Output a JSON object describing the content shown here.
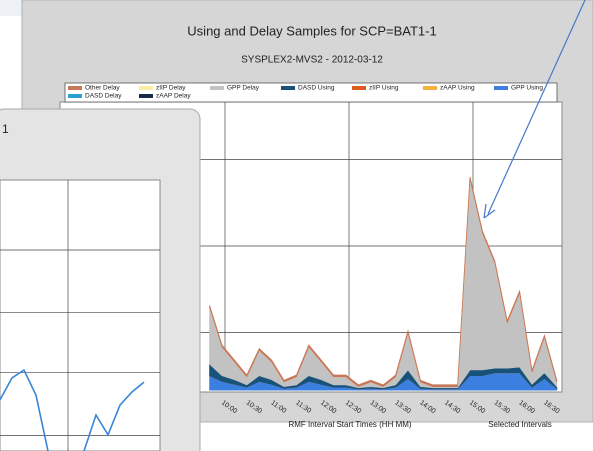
{
  "chart_data": [
    {
      "type": "area",
      "title": "Using and Delay Samples for SCP=BAT1-1",
      "subtitle": "SYSPLEX2-MVS2 - 2012-03-12",
      "x_label": "RMF Interval Start Times (HH MM)",
      "note": "Selected Intervals",
      "stacked": true,
      "grid": true,
      "categories": [
        null,
        "10:00",
        null,
        "10:30",
        null,
        "11:00",
        null,
        "11:30",
        null,
        "12:00",
        null,
        "12:30",
        null,
        "13:00",
        null,
        "13:30",
        null,
        "14:00",
        null,
        "14:30",
        null,
        "15:00",
        null,
        "15:30",
        null,
        "16:00",
        null,
        "16:30",
        null
      ],
      "ylim": [
        0,
        50
      ],
      "yticks": [
        10,
        25,
        40
      ],
      "series": [
        {
          "name": "Other Delay",
          "color": "#c8785a",
          "values": [
            0.3,
            0.3,
            0.3,
            0.3,
            0.3,
            0.3,
            0.3,
            0.3,
            0.3,
            0.3,
            0.3,
            0.3,
            0.3,
            0.3,
            0.3,
            0.3,
            0.3,
            0.3,
            0.3,
            0.3,
            0.3,
            0.3,
            0.3,
            0.3,
            0.3,
            0.3,
            0.3,
            0.3,
            0.3
          ]
        },
        {
          "name": "zIIP Delay",
          "color": "#fbeea0",
          "values": [
            0,
            0,
            0,
            0,
            0,
            0,
            0,
            0,
            0,
            0,
            0,
            0,
            0,
            0,
            0,
            0,
            0,
            0,
            0,
            0,
            0,
            0,
            0,
            0,
            0,
            0,
            0,
            0,
            0
          ]
        },
        {
          "name": "GPP Delay",
          "color": "#c2c2c2",
          "values": [
            9.9,
            5.0,
            3.1,
            1.4,
            4.4,
            3.1,
            0.8,
            1.4,
            5.0,
            3.1,
            1.4,
            1.4,
            0.2,
            0.8,
            0.2,
            1.4,
            6.5,
            0.8,
            0.2,
            0.2,
            0.2,
            33.2,
            23.8,
            18.3,
            7.9,
            12.9,
            2.1,
            6.2,
            0.8
          ]
        },
        {
          "name": "DASD Using",
          "color": "#17527a",
          "values": [
            2,
            1,
            0.8,
            0.4,
            1,
            0.8,
            0.3,
            0.4,
            1,
            0.8,
            0.4,
            0.4,
            0.2,
            0.3,
            0.2,
            0.4,
            1.5,
            0.3,
            0.2,
            0.2,
            0.2,
            1,
            1,
            0.8,
            0.8,
            1,
            0.5,
            1,
            0.3
          ]
        },
        {
          "name": "zIIP Using",
          "color": "#e05a1c",
          "values": [
            0,
            0,
            0,
            0,
            0,
            0,
            0,
            0,
            0,
            0,
            0,
            0,
            0,
            0,
            0,
            0,
            0,
            0,
            0,
            0,
            0,
            0,
            0,
            0,
            0,
            0,
            0,
            0,
            0
          ]
        },
        {
          "name": "zAAP Using",
          "color": "#f5b041",
          "values": [
            0,
            0,
            0,
            0,
            0,
            0,
            0,
            0,
            0,
            0,
            0,
            0,
            0,
            0,
            0,
            0,
            0,
            0,
            0,
            0,
            0,
            0,
            0,
            0,
            0,
            0,
            0,
            0,
            0
          ]
        },
        {
          "name": "GPP Using",
          "color": "#3b7fe0",
          "values": [
            2.5,
            1.5,
            1,
            0.5,
            1.5,
            1,
            0.3,
            0.5,
            1.5,
            1,
            0.5,
            0.5,
            0.2,
            0.3,
            0.2,
            0.5,
            2,
            0.3,
            0.2,
            0.2,
            0.2,
            2.5,
            2.5,
            3,
            3,
            3,
            0.5,
            2,
            0.3
          ]
        },
        {
          "name": "DASD Delay",
          "color": "#2aa0d0",
          "values": [
            0,
            0,
            0,
            0,
            0,
            0,
            0,
            0,
            0,
            0,
            0,
            0,
            0,
            0,
            0,
            0,
            0,
            0,
            0,
            0,
            0,
            0,
            0,
            0,
            0,
            0,
            0,
            0,
            0
          ]
        },
        {
          "name": "zAAP Delay",
          "color": "#1b2a4a",
          "values": [
            0,
            0,
            0,
            0,
            0,
            0,
            0,
            0,
            0,
            0,
            0,
            0,
            0,
            0,
            0,
            0,
            0,
            0,
            0,
            0,
            0,
            0,
            0,
            0,
            0,
            0,
            0,
            0,
            0
          ]
        }
      ]
    },
    {
      "type": "line",
      "title": "1",
      "grid": true,
      "color": "#3a86d6",
      "ylim": [
        0,
        50
      ],
      "yticks": [
        3,
        15,
        26.5,
        38.5
      ],
      "values": [
        9.8,
        14.0,
        15.5,
        10.7,
        0,
        -3.6,
        -3.6,
        0,
        6.9,
        3.1,
        8.8,
        11.3,
        13.2
      ]
    }
  ]
}
